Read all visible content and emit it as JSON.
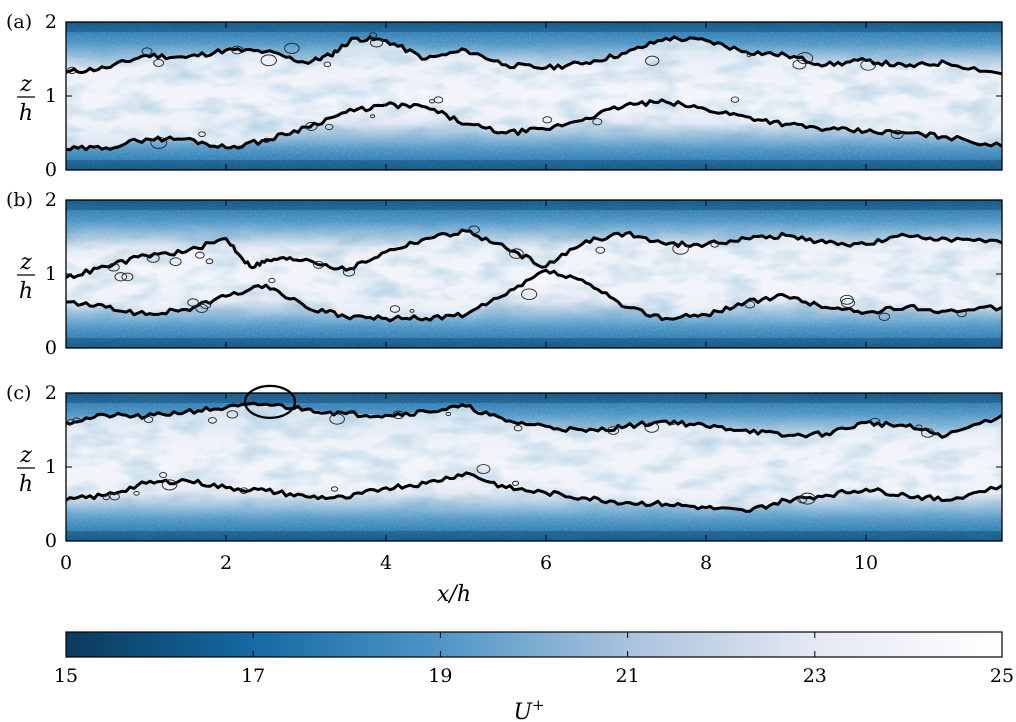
{
  "chart_data": {
    "type": "heatmap",
    "panels": [
      {
        "label": "(a)",
        "ylabel_num": "z",
        "ylabel_den": "h",
        "yticks": [
          "0",
          "1",
          "2"
        ],
        "ylim": [
          0,
          2
        ],
        "interface_upper": [
          [
            0,
            1.32
          ],
          [
            0.5,
            1.38
          ],
          [
            1,
            1.55
          ],
          [
            1.5,
            1.52
          ],
          [
            2,
            1.62
          ],
          [
            2.5,
            1.6
          ],
          [
            3,
            1.45
          ],
          [
            3.3,
            1.55
          ],
          [
            3.6,
            1.78
          ],
          [
            4,
            1.75
          ],
          [
            4.5,
            1.5
          ],
          [
            5,
            1.62
          ],
          [
            5.5,
            1.42
          ],
          [
            6,
            1.38
          ],
          [
            6.5,
            1.45
          ],
          [
            7,
            1.58
          ],
          [
            7.5,
            1.78
          ],
          [
            8,
            1.75
          ],
          [
            8.5,
            1.6
          ],
          [
            9,
            1.55
          ],
          [
            9.5,
            1.42
          ],
          [
            10,
            1.48
          ],
          [
            10.5,
            1.4
          ],
          [
            11,
            1.45
          ],
          [
            11.7,
            1.3
          ]
        ],
        "interface_lower": [
          [
            0,
            0.28
          ],
          [
            0.5,
            0.3
          ],
          [
            1,
            0.42
          ],
          [
            1.5,
            0.42
          ],
          [
            2,
            0.3
          ],
          [
            2.5,
            0.4
          ],
          [
            3,
            0.58
          ],
          [
            3.5,
            0.78
          ],
          [
            4,
            0.88
          ],
          [
            4.5,
            0.85
          ],
          [
            5,
            0.62
          ],
          [
            5.5,
            0.5
          ],
          [
            6,
            0.55
          ],
          [
            6.5,
            0.7
          ],
          [
            7,
            0.88
          ],
          [
            7.5,
            0.92
          ],
          [
            8,
            0.82
          ],
          [
            8.5,
            0.72
          ],
          [
            9,
            0.62
          ],
          [
            9.5,
            0.55
          ],
          [
            10,
            0.52
          ],
          [
            10.5,
            0.5
          ],
          [
            11,
            0.45
          ],
          [
            11.7,
            0.32
          ]
        ]
      },
      {
        "label": "(b)",
        "ylabel_num": "z",
        "ylabel_den": "h",
        "yticks": [
          "0",
          "1",
          "2"
        ],
        "ylim": [
          0,
          2
        ],
        "interface_upper": [
          [
            0,
            0.95
          ],
          [
            0.5,
            1.1
          ],
          [
            1,
            1.25
          ],
          [
            1.5,
            1.3
          ],
          [
            2,
            1.48
          ],
          [
            2.3,
            1.1
          ],
          [
            2.6,
            1.2
          ],
          [
            3,
            1.2
          ],
          [
            3.5,
            1.05
          ],
          [
            4,
            1.3
          ],
          [
            4.5,
            1.48
          ],
          [
            5,
            1.58
          ],
          [
            5.5,
            1.35
          ],
          [
            6,
            1.1
          ],
          [
            6.5,
            1.45
          ],
          [
            7,
            1.55
          ],
          [
            7.5,
            1.4
          ],
          [
            8,
            1.4
          ],
          [
            8.5,
            1.48
          ],
          [
            9,
            1.52
          ],
          [
            9.5,
            1.42
          ],
          [
            10,
            1.4
          ],
          [
            10.5,
            1.52
          ],
          [
            11,
            1.48
          ],
          [
            11.7,
            1.42
          ]
        ],
        "interface_lower": [
          [
            0,
            0.62
          ],
          [
            0.5,
            0.55
          ],
          [
            1,
            0.45
          ],
          [
            1.5,
            0.52
          ],
          [
            2,
            0.7
          ],
          [
            2.5,
            0.85
          ],
          [
            3,
            0.55
          ],
          [
            3.5,
            0.42
          ],
          [
            4,
            0.4
          ],
          [
            4.5,
            0.4
          ],
          [
            5,
            0.45
          ],
          [
            5.5,
            0.72
          ],
          [
            6,
            1.05
          ],
          [
            6.5,
            0.88
          ],
          [
            7,
            0.55
          ],
          [
            7.5,
            0.4
          ],
          [
            8,
            0.45
          ],
          [
            8.5,
            0.62
          ],
          [
            9,
            0.7
          ],
          [
            9.5,
            0.55
          ],
          [
            10,
            0.48
          ],
          [
            10.5,
            0.55
          ],
          [
            11,
            0.5
          ],
          [
            11.7,
            0.55
          ]
        ]
      },
      {
        "label": "(c)",
        "ylabel_num": "z",
        "ylabel_den": "h",
        "yticks": [
          "0",
          "1",
          "2"
        ],
        "ylim": [
          0,
          2
        ],
        "interface_upper": [
          [
            0,
            1.6
          ],
          [
            0.5,
            1.7
          ],
          [
            1,
            1.68
          ],
          [
            1.5,
            1.75
          ],
          [
            2,
            1.8
          ],
          [
            2.5,
            1.85
          ],
          [
            3,
            1.78
          ],
          [
            3.5,
            1.72
          ],
          [
            4,
            1.7
          ],
          [
            4.5,
            1.75
          ],
          [
            5,
            1.82
          ],
          [
            5.5,
            1.62
          ],
          [
            6,
            1.55
          ],
          [
            6.5,
            1.48
          ],
          [
            7,
            1.55
          ],
          [
            7.5,
            1.62
          ],
          [
            8,
            1.55
          ],
          [
            8.5,
            1.5
          ],
          [
            9,
            1.42
          ],
          [
            9.5,
            1.45
          ],
          [
            10,
            1.6
          ],
          [
            10.5,
            1.55
          ],
          [
            11,
            1.42
          ],
          [
            11.7,
            1.7
          ]
        ],
        "interface_lower": [
          [
            0,
            0.55
          ],
          [
            0.5,
            0.62
          ],
          [
            1,
            0.78
          ],
          [
            1.5,
            0.82
          ],
          [
            2,
            0.72
          ],
          [
            2.5,
            0.68
          ],
          [
            3,
            0.6
          ],
          [
            3.5,
            0.58
          ],
          [
            4,
            0.72
          ],
          [
            4.5,
            0.78
          ],
          [
            5,
            0.92
          ],
          [
            5.5,
            0.72
          ],
          [
            6,
            0.65
          ],
          [
            6.5,
            0.58
          ],
          [
            7,
            0.52
          ],
          [
            7.5,
            0.5
          ],
          [
            8,
            0.45
          ],
          [
            8.5,
            0.4
          ],
          [
            9,
            0.55
          ],
          [
            9.5,
            0.62
          ],
          [
            10,
            0.7
          ],
          [
            10.5,
            0.62
          ],
          [
            11,
            0.55
          ],
          [
            11.7,
            0.75
          ]
        ],
        "annotation_ellipse": {
          "x": 2.55,
          "z": 1.88
        }
      }
    ],
    "xlabel": "x/h",
    "xticks": [
      "0",
      "2",
      "4",
      "6",
      "8",
      "10"
    ],
    "xlim": [
      0,
      11.7
    ],
    "colorbar": {
      "label": "U+",
      "label_base": "U",
      "label_sup": "+",
      "ticks": [
        "15",
        "17",
        "19",
        "21",
        "23",
        "25"
      ],
      "range": [
        15,
        25
      ],
      "colormap": [
        "#0b3a5c",
        "#1669a3",
        "#4f96c6",
        "#a9c2dd",
        "#e4e8f3",
        "#ffffff"
      ]
    }
  }
}
